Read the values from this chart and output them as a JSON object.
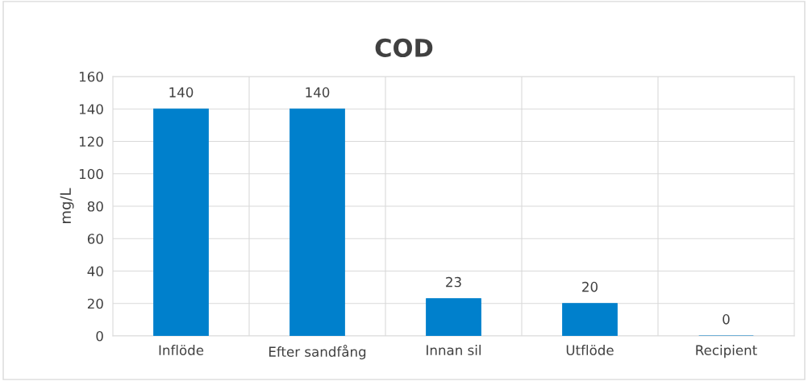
{
  "chart_data": {
    "type": "bar",
    "title": "COD",
    "ylabel": "mg/L",
    "categories": [
      "Inflöde",
      "Efter sandfång",
      "Innan sil",
      "Utflöde",
      "Recipient"
    ],
    "values": [
      140,
      140,
      23,
      20,
      0
    ],
    "color": "#0080cc",
    "ylim": [
      0,
      160
    ],
    "yticks": [
      0,
      20,
      40,
      60,
      80,
      100,
      120,
      140,
      160
    ],
    "grid": true,
    "data_labels": true
  }
}
